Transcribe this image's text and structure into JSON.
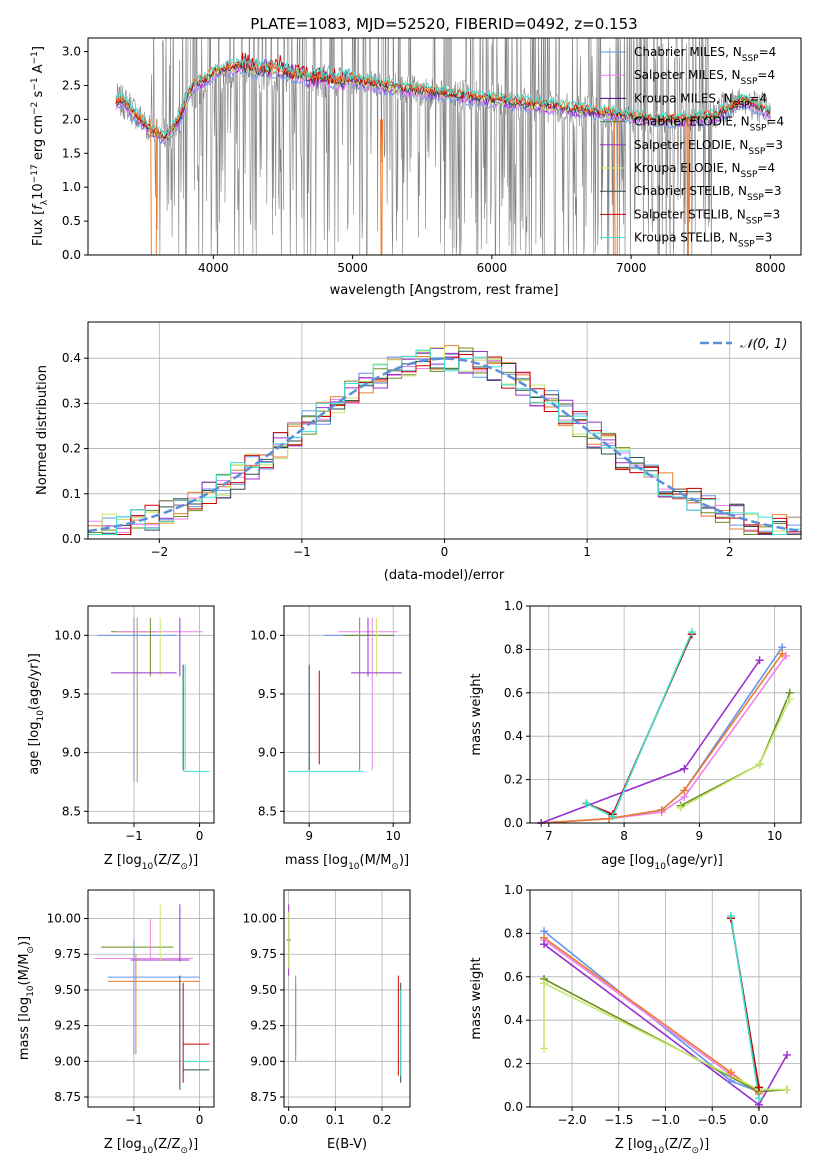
{
  "figure_title": "PLATE=1083, MJD=52520, FIBERID=0492, z=0.153",
  "colors": {
    "chabrier_miles": "#6495ed",
    "salpeter_miles": "#ee82ee",
    "kroupa_miles": "#4b0082",
    "chabrier_elodie": "#6b8e23",
    "salpeter_elodie": "#9932cc",
    "kroupa_elodie": "#c5e86c",
    "chabrier_stelib": "#2f4f4f",
    "salpeter_stelib": "#cc0000",
    "kroupa_stelib": "#40e0d0",
    "data": "#808080",
    "model_orange": "#ed7d31",
    "normal": "#5b8fd9"
  },
  "chart_data": [
    {
      "type": "line",
      "id": "spectrum",
      "title": "PLATE=1083, MJD=52520, FIBERID=0492, z=0.153",
      "xlabel": "wavelength [Angstrom, rest frame]",
      "ylabel_parts": [
        "Flux [",
        "f",
        "λ",
        "10",
        "−17",
        " erg cm",
        "−2",
        " s",
        "−1",
        " A",
        "−1",
        "]"
      ],
      "xlim": [
        3100,
        8220
      ],
      "ylim": [
        0,
        3.2
      ],
      "xticks": [
        4000,
        5000,
        6000,
        7000,
        8000
      ],
      "yticks": [
        0.0,
        0.5,
        1.0,
        1.5,
        2.0,
        2.5,
        3.0
      ],
      "legend": [
        "Chabrier MILES, N_SSP=4",
        "Salpeter MILES, N_SSP=4",
        "Kroupa MILES, N_SSP=4",
        "Chabrier ELODIE, N_SSP=4",
        "Salpeter ELODIE, N_SSP=3",
        "Kroupa ELODIE, N_SSP=4",
        "Chabrier STELIB, N_SSP=3",
        "Salpeter STELIB, N_SSP=3",
        "Kroupa STELIB, N_SSP=3"
      ],
      "legend_parts": [
        [
          "Chabrier MILES, N",
          "SSP",
          "=4"
        ],
        [
          "Salpeter MILES, N",
          "SSP",
          "=4"
        ],
        [
          "Kroupa MILES, N",
          "SSP",
          "=4"
        ],
        [
          "Chabrier ELODIE, N",
          "SSP",
          "=4"
        ],
        [
          "Salpeter ELODIE, N",
          "SSP",
          "=3"
        ],
        [
          "Kroupa ELODIE, N",
          "SSP",
          "=4"
        ],
        [
          "Chabrier STELIB, N",
          "SSP",
          "=3"
        ],
        [
          "Salpeter STELIB, N",
          "SSP",
          "=3"
        ],
        [
          "Kroupa STELIB, N",
          "SSP",
          "=3"
        ]
      ],
      "legend_colors": [
        "#6495ed",
        "#ee82ee",
        "#4b0082",
        "#6b8e23",
        "#9932cc",
        "#c5e86c",
        "#2f4f4f",
        "#cc0000",
        "#40e0d0"
      ],
      "legend_position": "upper right",
      "model_continuum": {
        "x": [
          3300,
          3350,
          3400,
          3450,
          3500,
          3550,
          3600,
          3650,
          3700,
          3750,
          3800,
          3850,
          3900,
          3950,
          4000,
          4100,
          4200,
          4300,
          4400,
          4500,
          4600,
          4700,
          4800,
          4900,
          5000,
          5200,
          5400,
          5600,
          5800,
          6000,
          6200,
          6400,
          6600,
          6800,
          7000,
          7200,
          7400,
          7600,
          7700,
          7800,
          7900,
          8000
        ],
        "y": [
          2.25,
          2.3,
          2.15,
          2.05,
          1.95,
          1.85,
          1.8,
          1.75,
          1.85,
          2.0,
          2.25,
          2.5,
          2.55,
          2.6,
          2.7,
          2.75,
          2.8,
          2.72,
          2.75,
          2.7,
          2.65,
          2.62,
          2.6,
          2.55,
          2.6,
          2.5,
          2.45,
          2.4,
          2.35,
          2.3,
          2.25,
          2.2,
          2.15,
          2.1,
          2.05,
          2.0,
          2.0,
          2.05,
          2.15,
          2.3,
          2.2,
          2.1
        ]
      },
      "data_line_flux": {
        "x": [
          3300,
          3400,
          3500,
          3600,
          3700,
          3800,
          4000,
          4200,
          4500,
          5000,
          5500,
          6000,
          6500,
          6800,
          7000,
          7200,
          7400,
          7600,
          7800,
          8000
        ],
        "y": [
          2.3,
          2.2,
          1.95,
          1.8,
          1.8,
          2.2,
          2.6,
          2.7,
          2.6,
          2.55,
          2.4,
          2.3,
          2.15,
          2.1,
          2.05,
          2.0,
          2.0,
          2.1,
          2.3,
          2.1
        ]
      }
    },
    {
      "type": "line",
      "id": "residuals",
      "xlabel": "(data-model)/error",
      "ylabel": "Normed distribution",
      "xlim": [
        -2.5,
        2.5
      ],
      "ylim": [
        0,
        0.48
      ],
      "xticks": [
        -2,
        -1,
        0,
        1,
        2
      ],
      "yticks": [
        0.0,
        0.1,
        0.2,
        0.3,
        0.4
      ],
      "grid": true,
      "legend": [
        "𝒩(0, 1)"
      ],
      "legend_position": "upper right",
      "hist_bins": [
        -2.5,
        -2.4,
        -2.3,
        -2.2,
        -2.1,
        -2.0,
        -1.9,
        -1.8,
        -1.7,
        -1.6,
        -1.5,
        -1.4,
        -1.3,
        -1.2,
        -1.1,
        -1.0,
        -0.9,
        -0.8,
        -0.7,
        -0.6,
        -0.5,
        -0.4,
        -0.3,
        -0.2,
        -0.1,
        0.0,
        0.1,
        0.2,
        0.3,
        0.4,
        0.5,
        0.6,
        0.7,
        0.8,
        0.9,
        1.0,
        1.1,
        1.2,
        1.3,
        1.4,
        1.5,
        1.6,
        1.7,
        1.8,
        1.9,
        2.0,
        2.1,
        2.2,
        2.3,
        2.4,
        2.5
      ]
    },
    {
      "type": "scatter",
      "id": "z_vs_age",
      "xlabel_parts": [
        "Z [log",
        "10",
        "(Z/Z",
        "⊙",
        ")]"
      ],
      "ylabel_parts": [
        "age  [log",
        "10",
        "(age/yr)]"
      ],
      "xlim": [
        -1.7,
        0.22
      ],
      "ylim": [
        8.4,
        10.25
      ],
      "xticks": [
        -1,
        0
      ],
      "yticks": [
        8.5,
        9.0,
        9.5,
        10.0
      ],
      "grid": true
    },
    {
      "type": "scatter",
      "id": "mass_vs_age",
      "xlabel_parts": [
        "mass [log",
        "10",
        "(M/M",
        "⊙",
        ")]"
      ],
      "xlim": [
        8.7,
        10.2
      ],
      "ylim": [
        8.4,
        10.25
      ],
      "xticks": [
        9,
        10
      ],
      "yticks": [
        8.5,
        9.0,
        9.5,
        10.0
      ],
      "grid": true
    },
    {
      "type": "line",
      "id": "age_mass_weight",
      "xlabel_parts": [
        "age  [log",
        "10",
        "(age/yr)]"
      ],
      "ylabel": "mass weight",
      "xlim": [
        6.75,
        10.35
      ],
      "ylim": [
        0,
        1.0
      ],
      "xticks": [
        7,
        8,
        9,
        10
      ],
      "yticks": [
        0.0,
        0.2,
        0.4,
        0.6,
        0.8,
        1.0
      ],
      "grid": true,
      "series": [
        {
          "color": "#6495ed",
          "x": [
            6.9,
            7.8,
            8.5,
            8.8,
            10.1
          ],
          "y": [
            0.0,
            0.02,
            0.06,
            0.15,
            0.81
          ]
        },
        {
          "color": "#ee82ee",
          "x": [
            6.9,
            7.8,
            8.5,
            8.8,
            10.15
          ],
          "y": [
            0.0,
            0.02,
            0.05,
            0.12,
            0.77
          ]
        },
        {
          "color": "#ed7d31",
          "x": [
            6.9,
            7.8,
            8.5,
            8.8,
            10.1
          ],
          "y": [
            0.0,
            0.02,
            0.06,
            0.15,
            0.78
          ]
        },
        {
          "color": "#6b8e23",
          "x": [
            8.75,
            9.8,
            10.2
          ],
          "y": [
            0.08,
            0.27,
            0.6
          ]
        },
        {
          "color": "#9932cc",
          "x": [
            6.9,
            8.8,
            9.8
          ],
          "y": [
            0.0,
            0.25,
            0.75
          ]
        },
        {
          "color": "#c5e86c",
          "x": [
            8.75,
            9.8,
            10.2
          ],
          "y": [
            0.07,
            0.27,
            0.57
          ]
        },
        {
          "color": "#2f4f4f",
          "x": [
            7.5,
            7.85,
            8.9
          ],
          "y": [
            0.09,
            0.04,
            0.87
          ]
        },
        {
          "color": "#cc0000",
          "x": [
            7.5,
            7.85,
            8.9
          ],
          "y": [
            0.09,
            0.04,
            0.87
          ]
        },
        {
          "color": "#40e0d0",
          "x": [
            7.5,
            7.85,
            8.9
          ],
          "y": [
            0.09,
            0.03,
            0.88
          ]
        }
      ]
    },
    {
      "type": "scatter",
      "id": "z_vs_mass",
      "xlabel_parts": [
        "Z [log",
        "10",
        "(Z/Z",
        "⊙",
        ")]"
      ],
      "ylabel_parts": [
        "mass [log",
        "10",
        "(M/M",
        "⊙",
        ")]"
      ],
      "xlim": [
        -1.7,
        0.22
      ],
      "ylim": [
        8.68,
        10.2
      ],
      "xticks": [
        -1,
        0
      ],
      "yticks": [
        8.75,
        9.0,
        9.25,
        9.5,
        9.75,
        10.0
      ],
      "grid": true
    },
    {
      "type": "scatter",
      "id": "ebv_vs_mass",
      "xlabel": "E(B-V)",
      "xlim": [
        -0.01,
        0.26
      ],
      "ylim": [
        8.68,
        10.2
      ],
      "xticks": [
        0.0,
        0.1,
        0.2
      ],
      "yticks": [
        8.75,
        9.0,
        9.25,
        9.5,
        9.75,
        10.0
      ],
      "grid": true
    },
    {
      "type": "line",
      "id": "z_mass_weight",
      "xlabel_parts": [
        "Z [log",
        "10",
        "(Z/Z",
        "⊙",
        ")]"
      ],
      "ylabel": "mass weight",
      "xlim": [
        -2.45,
        0.45
      ],
      "ylim": [
        0,
        1.0
      ],
      "xticks": [
        -2.0,
        -1.5,
        -1.0,
        -0.5,
        0.0
      ],
      "yticks": [
        0.0,
        0.2,
        0.4,
        0.6,
        0.8,
        1.0
      ],
      "grid": true,
      "series": [
        {
          "color": "#6495ed",
          "x": [
            -2.3,
            -0.3,
            0.0
          ],
          "y": [
            0.81,
            0.12,
            0.07
          ]
        },
        {
          "color": "#ee82ee",
          "x": [
            -2.3,
            -0.3,
            0.0
          ],
          "y": [
            0.77,
            0.15,
            0.07
          ]
        },
        {
          "color": "#ed7d31",
          "x": [
            -2.3,
            -0.3,
            0.0
          ],
          "y": [
            0.78,
            0.16,
            0.06
          ]
        },
        {
          "color": "#6b8e23",
          "x": [
            -2.3,
            0.0,
            0.3
          ],
          "y": [
            0.59,
            0.07,
            0.08
          ]
        },
        {
          "color": "#9932cc",
          "x": [
            -2.3,
            0.0,
            0.3
          ],
          "y": [
            0.75,
            0.01,
            0.24
          ]
        },
        {
          "color": "#c5e86c",
          "x": [
            -2.3,
            -2.3,
            0.0,
            0.3
          ],
          "y": [
            0.27,
            0.57,
            0.08,
            0.08
          ]
        },
        {
          "color": "#2f4f4f",
          "x": [
            -0.3,
            0.0
          ],
          "y": [
            0.87,
            0.09
          ]
        },
        {
          "color": "#cc0000",
          "x": [
            -0.3,
            0.0
          ],
          "y": [
            0.87,
            0.09
          ]
        },
        {
          "color": "#40e0d0",
          "x": [
            -0.3,
            0.0
          ],
          "y": [
            0.88,
            0.04
          ]
        }
      ]
    }
  ]
}
